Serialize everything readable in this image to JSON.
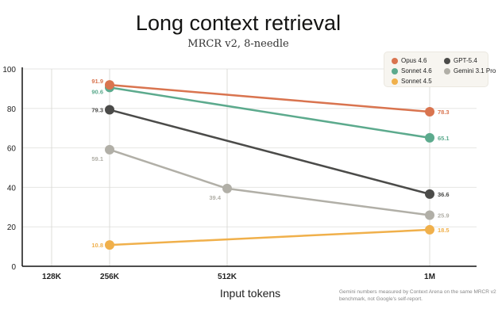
{
  "chart_data": {
    "type": "line",
    "title": "Long context retrieval",
    "subtitle": "MRCR v2, 8-needle",
    "xlabel": "Input tokens",
    "ylabel": "",
    "categories": [
      "128K",
      "256K",
      "512K",
      "1M"
    ],
    "yticks": [
      "0",
      "20",
      "40",
      "60",
      "80",
      "100"
    ],
    "ylim": [
      0,
      100
    ],
    "grid": true,
    "legend_placement": "top-right",
    "series": [
      {
        "name": "Opus 4.6",
        "color": "#d9744f",
        "points": [
          {
            "x": "256K",
            "y": 91.9
          },
          {
            "x": "1M",
            "y": 78.3
          }
        ],
        "labels": [
          "91.9",
          "78.3"
        ]
      },
      {
        "name": "Sonnet 4.6",
        "color": "#5caa8d",
        "points": [
          {
            "x": "256K",
            "y": 90.6
          },
          {
            "x": "1M",
            "y": 65.1
          }
        ],
        "labels": [
          "90.6",
          "65.1"
        ]
      },
      {
        "name": "Sonnet 4.5",
        "color": "#f0b04b",
        "points": [
          {
            "x": "256K",
            "y": 10.8
          },
          {
            "x": "1M",
            "y": 18.5
          }
        ],
        "labels": [
          "10.8",
          "18.5"
        ]
      },
      {
        "name": "GPT-5.4",
        "color": "#4b4b49",
        "points": [
          {
            "x": "256K",
            "y": 79.3
          },
          {
            "x": "1M",
            "y": 36.6
          }
        ],
        "labels": [
          "79.3",
          "36.6"
        ]
      },
      {
        "name": "Gemini 3.1 Pro",
        "color": "#b1afa7",
        "points": [
          {
            "x": "256K",
            "y": 59.1
          },
          {
            "x": "512K",
            "y": 39.4
          },
          {
            "x": "1M",
            "y": 25.9
          }
        ],
        "labels": [
          "59.1",
          "39.4",
          "25.9"
        ]
      }
    ],
    "footnote": "Gemini numbers measured by Context Arena on the same MRCR v2 benchmark, not Google's self-report."
  }
}
